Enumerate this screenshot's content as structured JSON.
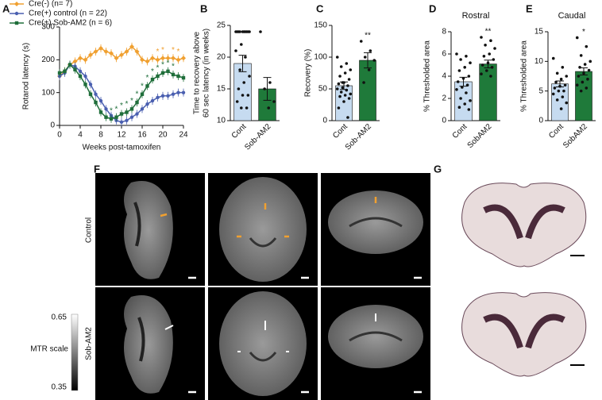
{
  "chart_data": [
    {
      "type": "line",
      "panel": "A",
      "ylabel": "Rotarod latency (s)",
      "xlabel": "Weeks post-tamoxifen",
      "x": [
        0,
        1,
        2,
        3,
        4,
        5,
        6,
        7,
        8,
        9,
        10,
        11,
        12,
        13,
        14,
        15,
        16,
        17,
        18,
        19,
        20,
        21,
        22,
        23,
        24
      ],
      "xlim": [
        0,
        24
      ],
      "xticks": [
        0,
        4,
        8,
        12,
        16,
        20,
        24
      ],
      "ylim": [
        0,
        300
      ],
      "yticks": [
        0,
        100,
        200,
        300
      ],
      "series": [
        {
          "name": "Cre(-) (n= 7)",
          "color": "#f0a030",
          "marker": "diamond",
          "values": [
            150,
            165,
            185,
            195,
            205,
            200,
            215,
            225,
            235,
            225,
            220,
            205,
            215,
            225,
            240,
            225,
            200,
            195,
            205,
            200,
            205,
            205,
            205,
            200,
            205
          ],
          "annotations": [
            null,
            null,
            null,
            null,
            null,
            null,
            null,
            null,
            null,
            null,
            null,
            null,
            null,
            null,
            null,
            null,
            null,
            null,
            null,
            "*",
            "*",
            null,
            "*",
            "*",
            null
          ]
        },
        {
          "name": "Cre(+) control (n = 22)",
          "color": "#4a5fb0",
          "marker": "circle",
          "values": [
            150,
            160,
            185,
            180,
            165,
            150,
            125,
            95,
            75,
            50,
            30,
            15,
            10,
            15,
            25,
            35,
            50,
            65,
            75,
            85,
            90,
            90,
            95,
            100,
            100
          ],
          "annotations": [
            null,
            null,
            null,
            null,
            null,
            null,
            null,
            null,
            null,
            null,
            null,
            null,
            null,
            null,
            null,
            null,
            null,
            null,
            null,
            null,
            null,
            null,
            null,
            null,
            null
          ]
        },
        {
          "name": "Cre(+) Sob-AM2 (n = 6)",
          "color": "#1f6e3a",
          "marker": "square",
          "values": [
            160,
            165,
            185,
            170,
            150,
            125,
            95,
            70,
            40,
            25,
            20,
            25,
            35,
            40,
            50,
            70,
            95,
            120,
            140,
            150,
            160,
            165,
            155,
            150,
            145
          ],
          "annotations": [
            null,
            null,
            null,
            null,
            null,
            null,
            null,
            null,
            null,
            null,
            "*",
            "*",
            "*",
            "*",
            "*",
            "*",
            "*",
            "*",
            "*",
            "*",
            "*",
            "*",
            "*",
            null,
            null
          ]
        }
      ]
    },
    {
      "type": "bar",
      "panel": "B",
      "ylabel": [
        "Time to recovery above",
        "60 sec latency (in weeks)"
      ],
      "categories": [
        "Cont",
        "Sob-AM2"
      ],
      "values": [
        19,
        15
      ],
      "errors": [
        1.3,
        1.8
      ],
      "colors": [
        "#c6dbf0",
        "#1f7a3a"
      ],
      "points": [
        [
          24,
          24,
          24,
          24,
          24,
          24,
          24,
          24,
          24,
          24,
          22,
          21,
          20,
          18,
          17,
          16,
          15,
          14,
          14,
          13,
          12,
          12
        ],
        [
          24,
          16,
          15,
          13,
          12
        ]
      ],
      "sig": [
        null,
        null
      ],
      "ylim": [
        10,
        25
      ],
      "yticks": [
        10,
        15,
        20,
        25
      ]
    },
    {
      "type": "bar",
      "panel": "C",
      "ylabel": [
        "Recovery (%)"
      ],
      "categories": [
        "Cont",
        "Sob-AM2"
      ],
      "values": [
        55,
        95
      ],
      "errors": [
        6,
        12
      ],
      "colors": [
        "#c6dbf0",
        "#1f7a3a"
      ],
      "points": [
        [
          100,
          90,
          85,
          80,
          75,
          70,
          65,
          60,
          58,
          55,
          52,
          50,
          48,
          45,
          42,
          40,
          38,
          35,
          30,
          20,
          5,
          60
        ],
        [
          125,
          110,
          100,
          95,
          80,
          60
        ]
      ],
      "sig": [
        null,
        "**"
      ],
      "ylim": [
        0,
        150
      ],
      "yticks": [
        0,
        50,
        100,
        150
      ]
    },
    {
      "type": "bar",
      "panel": "D",
      "title": "Rostral",
      "ylabel": [
        "% Thresholded area"
      ],
      "categories": [
        "Cont",
        "SobAM2"
      ],
      "values": [
        3.5,
        5.1
      ],
      "errors": [
        0.4,
        0.35
      ],
      "colors": [
        "#c6dbf0",
        "#1f7a3a"
      ],
      "points": [
        [
          6,
          5.8,
          5.5,
          5.2,
          4.8,
          4.5,
          4,
          3.8,
          3.5,
          3.2,
          3,
          2.8,
          2.5,
          2,
          1.8,
          1.5,
          1.2,
          1.0
        ],
        [
          7.5,
          7.2,
          6.8,
          6.5,
          6,
          5.8,
          5.5,
          5.2,
          5,
          4.8,
          4.5,
          4.2,
          4
        ]
      ],
      "sig": [
        null,
        "**"
      ],
      "ylim": [
        0,
        8
      ],
      "yticks": [
        0,
        2,
        4,
        6,
        8
      ]
    },
    {
      "type": "bar",
      "panel": "E",
      "title": "Caudal",
      "ylabel": [
        "% Thresholded area"
      ],
      "categories": [
        "Cont",
        "SobAM2"
      ],
      "values": [
        6.2,
        8.3
      ],
      "errors": [
        0.5,
        0.6
      ],
      "colors": [
        "#c6dbf0",
        "#1f7a3a"
      ],
      "points": [
        [
          10.5,
          9,
          8,
          7.5,
          7,
          6.5,
          6,
          5.8,
          5.5,
          5,
          5,
          4.5,
          4,
          3.5,
          3,
          2
        ],
        [
          14,
          12.5,
          11,
          10,
          9.5,
          9,
          8.5,
          8,
          7.5,
          7,
          6.5,
          6,
          5.5,
          5
        ]
      ],
      "sig": [
        null,
        "*"
      ],
      "ylim": [
        0,
        15
      ],
      "yticks": [
        0,
        5,
        10,
        15
      ]
    }
  ],
  "images": {
    "F": {
      "panel": "F",
      "rows": [
        "Control",
        "Sob-AM2"
      ],
      "scale": {
        "title": "MTR scale",
        "max": 0.65,
        "min": 0.35
      }
    },
    "G": {
      "panel": "G"
    }
  }
}
